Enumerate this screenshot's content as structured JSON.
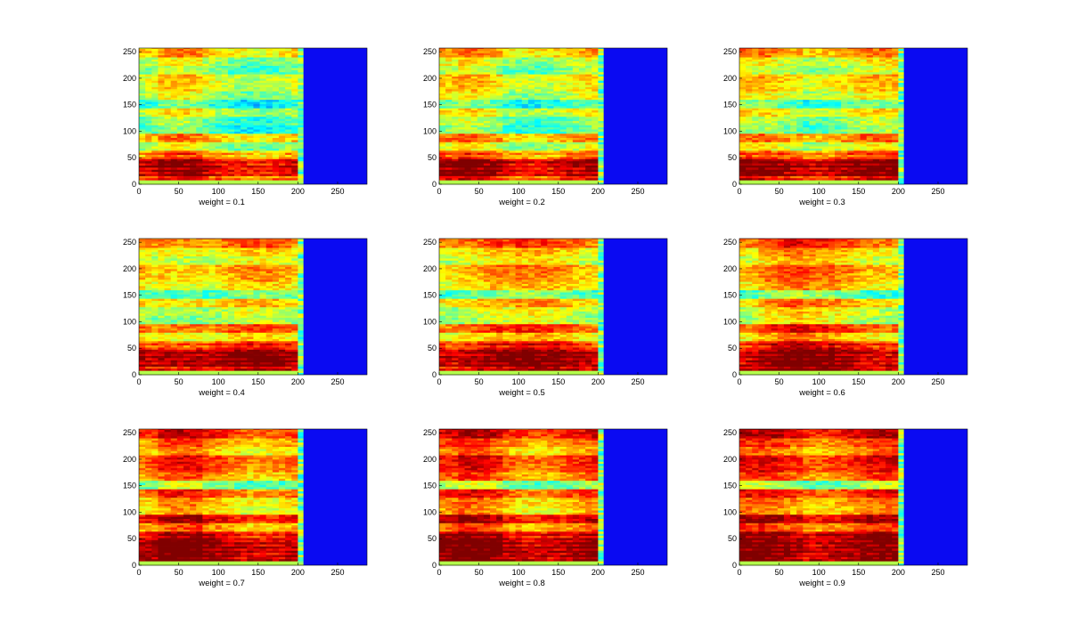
{
  "chart_data": [
    {
      "type": "heatmap",
      "xlabel": "weight = 0.1",
      "xlim": [
        0,
        287
      ],
      "ylim": [
        0,
        257
      ],
      "xticks": [
        0,
        50,
        100,
        150,
        200,
        250
      ],
      "yticks": [
        0,
        50,
        100,
        150,
        200,
        250
      ],
      "data_end_x": 207,
      "colormap": "jet",
      "intensity_by_frequency": [
        0.78,
        0.88,
        0.9,
        0.7,
        0.55,
        0.7,
        0.45,
        0.48,
        0.58,
        0.42,
        0.55,
        0.6,
        0.62,
        0.5,
        0.55,
        0.68
      ]
    },
    {
      "type": "heatmap",
      "xlabel": "weight = 0.2",
      "xlim": [
        0,
        287
      ],
      "ylim": [
        0,
        257
      ],
      "xticks": [
        0,
        50,
        100,
        150,
        200,
        250
      ],
      "yticks": [
        0,
        50,
        100,
        150,
        200,
        250
      ],
      "data_end_x": 207,
      "colormap": "jet",
      "intensity_by_frequency": [
        0.81,
        0.91,
        0.93,
        0.73,
        0.58,
        0.73,
        0.48,
        0.51,
        0.61,
        0.45,
        0.58,
        0.63,
        0.65,
        0.53,
        0.58,
        0.71
      ]
    },
    {
      "type": "heatmap",
      "xlabel": "weight = 0.3",
      "xlim": [
        0,
        287
      ],
      "ylim": [
        0,
        257
      ],
      "xticks": [
        0,
        50,
        100,
        150,
        200,
        250
      ],
      "yticks": [
        0,
        50,
        100,
        150,
        200,
        250
      ],
      "data_end_x": 207,
      "colormap": "jet",
      "intensity_by_frequency": [
        0.84,
        0.94,
        0.95,
        0.76,
        0.61,
        0.76,
        0.51,
        0.54,
        0.64,
        0.47,
        0.61,
        0.66,
        0.68,
        0.56,
        0.61,
        0.74
      ]
    },
    {
      "type": "heatmap",
      "xlabel": "weight = 0.4",
      "xlim": [
        0,
        287
      ],
      "ylim": [
        0,
        257
      ],
      "xticks": [
        0,
        50,
        100,
        150,
        200,
        250
      ],
      "yticks": [
        0,
        50,
        100,
        150,
        200,
        250
      ],
      "data_end_x": 207,
      "colormap": "jet",
      "intensity_by_frequency": [
        0.87,
        0.95,
        0.95,
        0.79,
        0.64,
        0.79,
        0.54,
        0.57,
        0.67,
        0.48,
        0.64,
        0.69,
        0.71,
        0.59,
        0.64,
        0.77
      ]
    },
    {
      "type": "heatmap",
      "xlabel": "weight = 0.5",
      "xlim": [
        0,
        287
      ],
      "ylim": [
        0,
        257
      ],
      "xticks": [
        0,
        50,
        100,
        150,
        200,
        250
      ],
      "yticks": [
        0,
        50,
        100,
        150,
        200,
        250
      ],
      "data_end_x": 207,
      "colormap": "jet",
      "intensity_by_frequency": [
        0.9,
        0.95,
        0.95,
        0.82,
        0.67,
        0.82,
        0.57,
        0.6,
        0.7,
        0.49,
        0.67,
        0.72,
        0.74,
        0.62,
        0.67,
        0.8
      ]
    },
    {
      "type": "heatmap",
      "xlabel": "weight = 0.6",
      "xlim": [
        0,
        287
      ],
      "ylim": [
        0,
        257
      ],
      "xticks": [
        0,
        50,
        100,
        150,
        200,
        250
      ],
      "yticks": [
        0,
        50,
        100,
        150,
        200,
        250
      ],
      "data_end_x": 207,
      "colormap": "jet",
      "intensity_by_frequency": [
        0.93,
        0.95,
        0.95,
        0.85,
        0.7,
        0.85,
        0.6,
        0.63,
        0.73,
        0.5,
        0.7,
        0.75,
        0.77,
        0.65,
        0.7,
        0.83
      ]
    },
    {
      "type": "heatmap",
      "xlabel": "weight = 0.7",
      "xlim": [
        0,
        287
      ],
      "ylim": [
        0,
        257
      ],
      "xticks": [
        0,
        50,
        100,
        150,
        200,
        250
      ],
      "yticks": [
        0,
        50,
        100,
        150,
        200,
        250
      ],
      "data_end_x": 207,
      "colormap": "jet",
      "intensity_by_frequency": [
        0.95,
        0.95,
        0.95,
        0.88,
        0.73,
        0.9,
        0.66,
        0.69,
        0.8,
        0.51,
        0.73,
        0.8,
        0.82,
        0.68,
        0.75,
        0.86
      ]
    },
    {
      "type": "heatmap",
      "xlabel": "weight = 0.8",
      "xlim": [
        0,
        287
      ],
      "ylim": [
        0,
        257
      ],
      "xticks": [
        0,
        50,
        100,
        150,
        200,
        250
      ],
      "yticks": [
        0,
        50,
        100,
        150,
        200,
        250
      ],
      "data_end_x": 207,
      "colormap": "jet",
      "intensity_by_frequency": [
        0.95,
        0.95,
        0.95,
        0.91,
        0.76,
        0.92,
        0.69,
        0.72,
        0.83,
        0.52,
        0.76,
        0.83,
        0.85,
        0.71,
        0.78,
        0.89
      ]
    },
    {
      "type": "heatmap",
      "xlabel": "weight = 0.9",
      "xlim": [
        0,
        287
      ],
      "ylim": [
        0,
        257
      ],
      "xticks": [
        0,
        50,
        100,
        150,
        200,
        250
      ],
      "yticks": [
        0,
        50,
        100,
        150,
        200,
        250
      ],
      "data_end_x": 207,
      "colormap": "jet",
      "intensity_by_frequency": [
        0.95,
        0.95,
        0.95,
        0.94,
        0.79,
        0.94,
        0.72,
        0.75,
        0.86,
        0.53,
        0.79,
        0.86,
        0.88,
        0.74,
        0.81,
        0.92
      ]
    }
  ],
  "colors": {
    "empty_region": "#0a0af2",
    "axis": "#000000"
  }
}
